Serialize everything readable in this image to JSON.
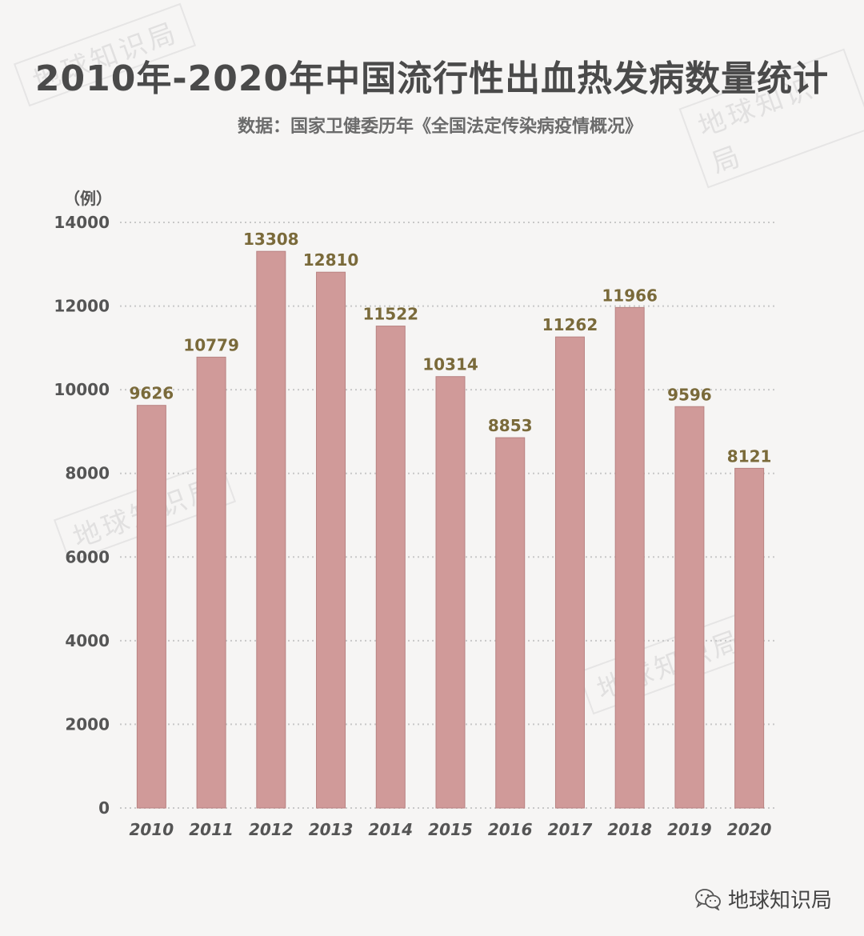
{
  "header": {
    "title": "2010年-2020年中国流行性出血热发病数量统计",
    "subtitle": "数据：国家卫健委历年《全国法定传染病疫情概况》",
    "unit_label": "（例）"
  },
  "watermark": {
    "text": "地球知识局"
  },
  "footer": {
    "brand": "地球知识局",
    "icon": "wechat-icon"
  },
  "colors": {
    "bar": "#d09a99",
    "bar_edge": "#b98382",
    "value_label": "#7a6a3a",
    "grid": "#c8c8c8",
    "axis_text": "#555555",
    "background": "#f6f5f4"
  },
  "chart_data": {
    "type": "bar",
    "title": "2010年-2020年中国流行性出血热发病数量统计",
    "ylabel": "（例）",
    "xlabel": "",
    "categories": [
      "2010",
      "2011",
      "2012",
      "2013",
      "2014",
      "2015",
      "2016",
      "2017",
      "2018",
      "2019",
      "2020"
    ],
    "values": [
      9626,
      10779,
      13308,
      12810,
      11522,
      10314,
      8853,
      11262,
      11966,
      9596,
      8121
    ],
    "ylim": [
      0,
      14000
    ],
    "yticks": [
      0,
      2000,
      4000,
      6000,
      8000,
      10000,
      12000,
      14000
    ],
    "grid": true,
    "legend": "none",
    "data_labels": true
  }
}
